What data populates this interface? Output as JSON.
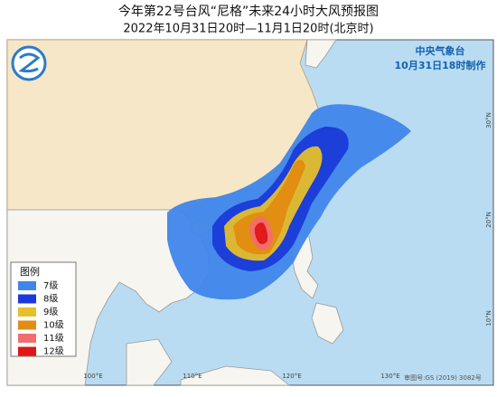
{
  "title": "今年第22号台风“尼格”未来24小时大风预报图",
  "subtitle": "2022年10月31日20时—11月1日20时(北京时)",
  "agency": "中央气象台",
  "issued": "10月31日18时制作",
  "legend": {
    "title": "图例",
    "items": [
      {
        "label": "7级",
        "color": "#3f86ea"
      },
      {
        "label": "8级",
        "color": "#1a3ad8"
      },
      {
        "label": "9级",
        "color": "#e6bf2a"
      },
      {
        "label": "10级",
        "color": "#e38b12"
      },
      {
        "label": "11级",
        "color": "#f26d6d"
      },
      {
        "label": "12级",
        "color": "#e01515"
      }
    ]
  },
  "lon_labels": [
    "100°E",
    "110°E",
    "120°E",
    "130°E"
  ],
  "lat_labels": [
    "30°N",
    "20°N",
    "10°N"
  ],
  "approval": "审图号:GS (2019) 3082号"
}
